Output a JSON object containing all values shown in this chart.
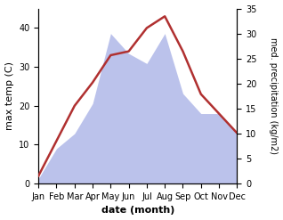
{
  "months": [
    "Jan",
    "Feb",
    "Mar",
    "Apr",
    "May",
    "Jun",
    "Jul",
    "Aug",
    "Sep",
    "Oct",
    "Nov",
    "Dec"
  ],
  "month_indices": [
    0,
    1,
    2,
    3,
    4,
    5,
    6,
    7,
    8,
    9,
    10,
    11
  ],
  "temperature": [
    2,
    11,
    20,
    26,
    33,
    34,
    40,
    43,
    34,
    23,
    18,
    13
  ],
  "precipitation": [
    1,
    7,
    10,
    16,
    30,
    26,
    24,
    30,
    18,
    14,
    14,
    10
  ],
  "temp_color": "#b03030",
  "precip_color_fill": "#b0b8e8",
  "temp_ylim": [
    0,
    45
  ],
  "precip_ylim": [
    0,
    35
  ],
  "temp_yticks": [
    0,
    10,
    20,
    30,
    40
  ],
  "precip_yticks": [
    0,
    5,
    10,
    15,
    20,
    25,
    30,
    35
  ],
  "xlabel": "date (month)",
  "ylabel_left": "max temp (C)",
  "ylabel_right": "med. precipitation (kg/m2)",
  "xlabel_fontsize": 8,
  "ylabel_fontsize": 8,
  "tick_fontsize": 7,
  "line_width": 1.8,
  "bg_color": "#ffffff"
}
